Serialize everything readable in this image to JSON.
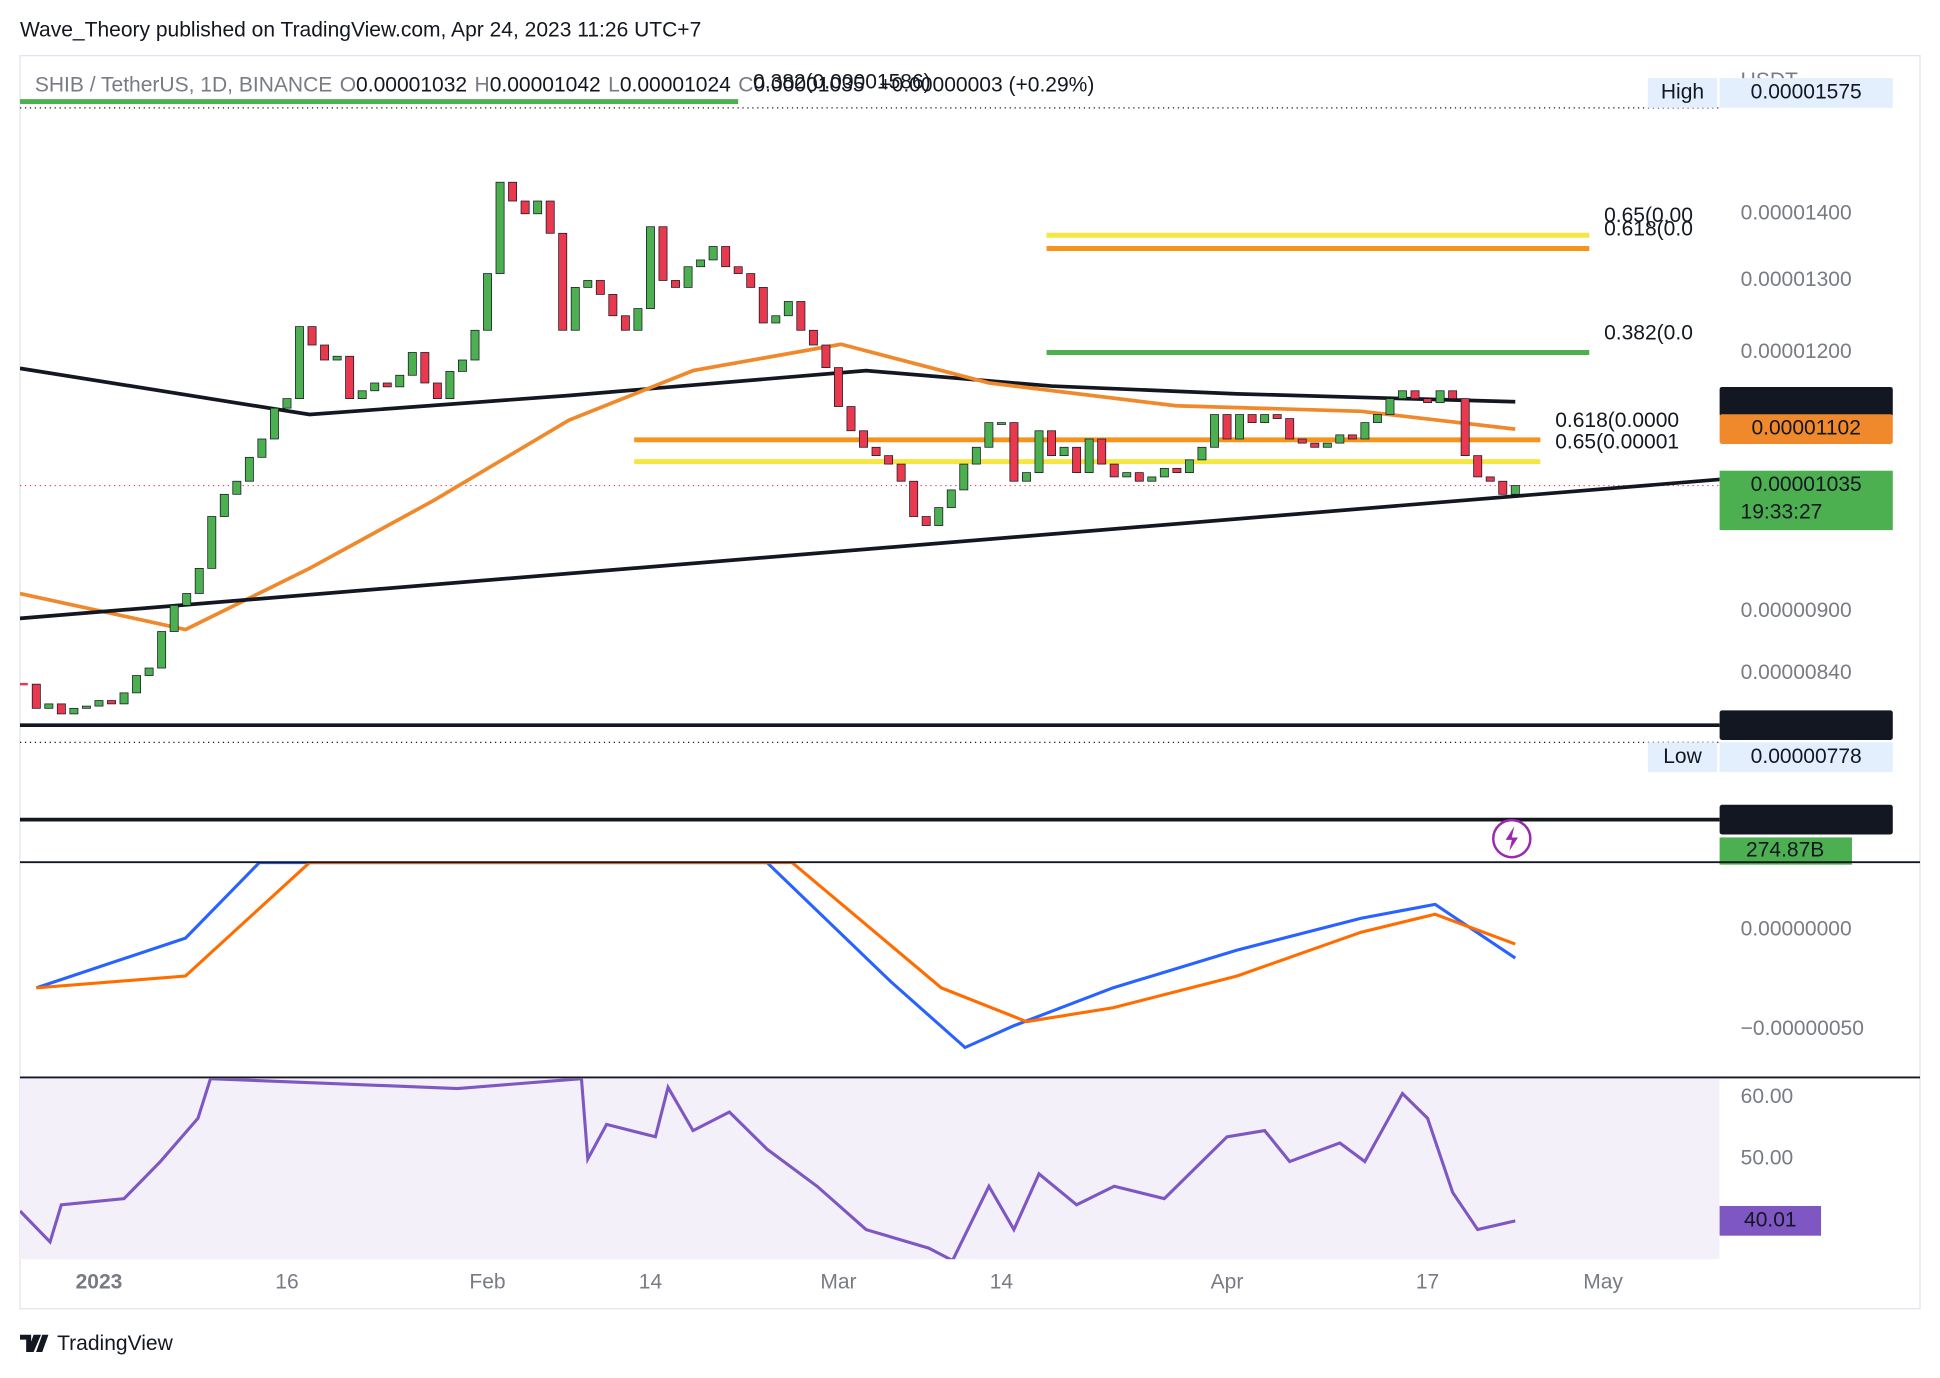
{
  "header": {
    "publisher": "Wave_Theory published on TradingView.com, Apr 24, 2023 11:26 UTC+7",
    "symbol": "SHIB / TetherUS, 1D, BINANCE",
    "ohlc": [
      {
        "label": "O",
        "value": 1.032e-05
      },
      {
        "label": "H",
        "value": 1.042e-05
      },
      {
        "label": "L",
        "value": 1.024e-05
      },
      {
        "label": "C",
        "value": 1.035e-05
      }
    ],
    "change": "+0.00000003 (+0.29%)"
  },
  "footer": {
    "brand": "TradingView"
  },
  "chart_data": [
    {
      "type": "candlestick",
      "currency": "USDT",
      "log_scale": true,
      "grid": false,
      "xlim": [
        -0.3,
        135.3
      ],
      "xticks": [
        {
          "value": 6,
          "label": "2023"
        },
        {
          "value": 21,
          "label": "16"
        },
        {
          "value": 37,
          "label": "Feb"
        },
        {
          "value": 50,
          "label": "14"
        },
        {
          "value": 65,
          "label": "Mar"
        },
        {
          "value": 78,
          "label": "14"
        },
        {
          "value": 96,
          "label": "Apr"
        },
        {
          "value": 112,
          "label": "17"
        },
        {
          "value": 126,
          "label": "May"
        }
      ],
      "ylim": [
        6.81e-06,
        1.669e-05
      ],
      "yticks": [
        {
          "value": 1.4e-05,
          "label": "0.00001400"
        },
        {
          "value": 1.3e-05,
          "label": "0.00001300"
        },
        {
          "value": 1.2e-05,
          "label": "0.00001200"
        },
        {
          "value": 9e-06,
          "label": "0.00000900"
        },
        {
          "value": 8.4e-06,
          "label": "0.00000840"
        }
      ],
      "up_color": "#4caf50",
      "down_color": "#e8394f",
      "closes": [
        8.3e-06,
        8.08e-06,
        8.12e-06,
        8.03e-06,
        8.08e-06,
        8.1e-06,
        8.15e-06,
        8.12e-06,
        8.22e-06,
        8.38e-06,
        8.45e-06,
        8.8e-06,
        9.06e-06,
        9.18e-06,
        9.44e-06,
        1e-05,
        1.025e-05,
        1.04e-05,
        1.068e-05,
        1.09e-05,
        1.128e-05,
        1.14e-05,
        1.235e-05,
        1.21e-05,
        1.19e-05,
        1.195e-05,
        1.14e-05,
        1.15e-05,
        1.16e-05,
        1.155e-05,
        1.17e-05,
        1.2e-05,
        1.16e-05,
        1.14e-05,
        1.175e-05,
        1.19e-05,
        1.23e-05,
        1.31e-05,
        1.45e-05,
        1.42e-05,
        1.4e-05,
        1.42e-05,
        1.37e-05,
        1.23e-05,
        1.29e-05,
        1.3e-05,
        1.28e-05,
        1.25e-05,
        1.23e-05,
        1.26e-05,
        1.38e-05,
        1.3e-05,
        1.29e-05,
        1.32e-05,
        1.33e-05,
        1.35e-05,
        1.32e-05,
        1.31e-05,
        1.29e-05,
        1.24e-05,
        1.25e-05,
        1.27e-05,
        1.23e-05,
        1.21e-05,
        1.18e-05,
        1.13e-05,
        1.1e-05,
        1.08e-05,
        1.07e-05,
        1.06e-05,
        1.04e-05,
        1e-05,
        9.9e-06,
        1.01e-05,
        1.03e-05,
        1.06e-05,
        1.08e-05,
        1.11e-05,
        1.11e-05,
        1.04e-05,
        1.05e-05,
        1.1e-05,
        1.07e-05,
        1.08e-05,
        1.05e-05,
        1.09e-05,
        1.06e-05,
        1.045e-05,
        1.05e-05,
        1.04e-05,
        1.045e-05,
        1.055e-05,
        1.05e-05,
        1.065e-05,
        1.08e-05,
        1.12e-05,
        1.09e-05,
        1.12e-05,
        1.11e-05,
        1.12e-05,
        1.115e-05,
        1.09e-05,
        1.085e-05,
        1.08e-05,
        1.085e-05,
        1.095e-05,
        1.09e-05,
        1.11e-05,
        1.12e-05,
        1.14e-05,
        1.15e-05,
        1.14e-05,
        1.135e-05,
        1.15e-05,
        1.14e-05,
        1.07e-05,
        1.045e-05,
        1.04e-05,
        1.025e-05,
        1.035e-05
      ],
      "countdown": "19:33:27",
      "lines": [
        {
          "color": "#131722",
          "tag": true,
          "x": [
            -0.3,
            22.8,
            43.5,
            67.2,
            82,
            96.8,
            119
          ],
          "values": [
            1.179e-05,
            1.12e-05,
            1.144e-05,
            1.176e-05,
            1.156e-05,
            1.146e-05,
            1.136e-05
          ]
        },
        {
          "color": "#f0892b",
          "tag": true,
          "x": [
            -0.3,
            12.9,
            22.8,
            32.7,
            43.5,
            53.4,
            65.2,
            77,
            91.9,
            106.7,
            119
          ],
          "values": [
            9.18e-06,
            8.82e-06,
            9.44e-06,
            1.018e-05,
            1.113e-05,
            1.176e-05,
            1.211e-05,
            1.16e-05,
            1.131e-05,
            1.124e-05,
            1.102e-05
          ]
        },
        {
          "color": "#131722",
          "tag": false,
          "x": [
            -0.3,
            135.3
          ],
          "values": [
            8.93e-06,
            1.042e-05
          ]
        }
      ],
      "levels": [
        {
          "value": 7.93e-06,
          "color": "#131722"
        },
        {
          "value": 7.14e-06,
          "color": "#131722"
        }
      ],
      "fibs": [
        {
          "label": "0.382(0.00001586)",
          "value": 1.586e-05,
          "x": [
            -0.3,
            57
          ],
          "color": "#4caf50"
        },
        {
          "label": "0.65(0.00",
          "value": 1.367e-05,
          "x": [
            81.6,
            124.9
          ],
          "color": "#f5e642"
        },
        {
          "label": "0.618(0.0",
          "value": 1.347e-05,
          "x": [
            81.6,
            124.9
          ],
          "color": "#f7931a"
        },
        {
          "label": "0.382(0.0",
          "value": 1.2e-05,
          "x": [
            81.6,
            124.9
          ],
          "color": "#4caf50"
        },
        {
          "label": "0.618(0.0000",
          "value": 1.089e-05,
          "x": [
            48.7,
            121
          ],
          "color": "#f7931a"
        },
        {
          "label": "0.65(0.00001",
          "value": 1.063e-05,
          "x": [
            48.7,
            121
          ],
          "color": "#f5e642"
        }
      ],
      "high": {
        "label": "High",
        "value": 1.575e-05
      },
      "low": {
        "label": "Low",
        "value": 7.78e-06
      },
      "volume": "274.87B"
    },
    {
      "type": "line",
      "xlim": [
        -0.3,
        135.3
      ],
      "ylim": [
        -7.34e-07,
        3.42e-07
      ],
      "yticks": [
        {
          "value": 0,
          "label": "0.00000000"
        },
        {
          "value": -5e-07,
          "label": "−0.00000050"
        }
      ],
      "series": [
        {
          "color": "#2962ff",
          "tag": false,
          "x": [
            1,
            12.9,
            18.8,
            59.3,
            69.2,
            75.1,
            79,
            86.9,
            96.8,
            106.7,
            112.6,
            119
          ],
          "values": [
            -2.9e-07,
            -4e-08,
            3.4e-07,
            3.4e-07,
            -2.6e-07,
            -5.9e-07,
            -4.8e-07,
            -2.9e-07,
            -1e-07,
            6e-08,
            1.3e-07,
            -1.4e-07
          ]
        },
        {
          "color": "#ff6d00",
          "tag": false,
          "x": [
            1,
            12.9,
            22.8,
            61.3,
            73.2,
            80,
            86.9,
            96.8,
            106.7,
            112.6,
            119
          ],
          "values": [
            -2.9e-07,
            -2.3e-07,
            3.4e-07,
            3.4e-07,
            -2.9e-07,
            -4.6e-07,
            -3.9e-07,
            -2.3e-07,
            -1e-08,
            8e-08,
            -7e-08
          ]
        }
      ]
    },
    {
      "type": "line",
      "xlim": [
        -0.3,
        135.3
      ],
      "ylim": [
        33.8,
        63
      ],
      "background": "#f3f0fa",
      "yticks": [
        {
          "value": 60,
          "label": "60.00"
        },
        {
          "value": 50,
          "label": "50.00"
        }
      ],
      "series": [
        {
          "color": "#7e57c2",
          "tag": true,
          "x": [
            -0.3,
            2.1,
            3,
            8,
            10.9,
            13.9,
            14.9,
            34.6,
            44.5,
            45,
            46.5,
            50.4,
            51.4,
            53.4,
            56.3,
            59.3,
            63.3,
            67.2,
            72.2,
            74.1,
            77,
            79,
            81,
            84,
            87,
            91,
            96,
            99,
            101,
            105,
            107,
            110,
            112,
            114,
            116,
            119
          ],
          "values": [
            41.6,
            36.6,
            42.6,
            43.6,
            49.6,
            56.6,
            63,
            61.4,
            63,
            50,
            55.6,
            53.6,
            61.6,
            54.6,
            57.6,
            51.6,
            45.6,
            38.6,
            35.6,
            33.6,
            45.6,
            38.6,
            47.6,
            42.6,
            45.6,
            43.6,
            53.6,
            54.6,
            49.6,
            52.6,
            49.6,
            60.6,
            56.6,
            44.6,
            38.6,
            40.01
          ]
        }
      ]
    }
  ]
}
